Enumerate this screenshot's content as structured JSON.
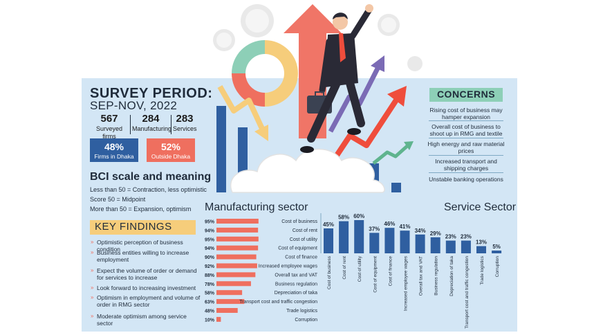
{
  "survey": {
    "title": "SURVEY PERIOD:",
    "dates": "SEP-NOV, 2022",
    "stats": [
      {
        "value": "567",
        "label": "Surveyed firms"
      },
      {
        "value": "284",
        "label": "Manufacturing"
      },
      {
        "value": "283",
        "label": "Services"
      }
    ],
    "dhaka": {
      "value": "48%",
      "label": "Firms in Dhaka",
      "color": "#2f5fa0"
    },
    "outside": {
      "value": "52%",
      "label": "Outside Dhaka",
      "color": "#ef6f5f"
    }
  },
  "bci": {
    "title": "BCI scale and meaning",
    "lines": [
      "Less than 50 = Contraction, less optimistic",
      "Score 50 = Midpoint",
      "More than 50 = Expansion, optimism"
    ]
  },
  "key_findings": {
    "title": "KEY FINDINGS",
    "items": [
      "Optimistic perception of business condition",
      "Business entities willing to increase employment",
      "Expect the volume of order or demand for services to increase",
      "Look forward to increasing investment",
      "Optimism in employment and volume of order in RMG sector",
      "Moderate optimism among service sector"
    ]
  },
  "concerns": {
    "title": "CONCERNS",
    "items": [
      "Rising cost of business may hamper expansion",
      "Overall cost of business to shoot up in RMG and textile",
      "High energy and raw material prices",
      "Increased transport and shipping charges",
      "Unstable banking operations"
    ]
  },
  "colors": {
    "panel": "#d3e6f5",
    "navy": "#2f5fa0",
    "coral": "#ef6f5f",
    "mustard": "#f6cd7b",
    "mint": "#8dcfb7"
  },
  "chart_data": [
    {
      "type": "bar",
      "orientation": "horizontal",
      "title": "Manufacturing sector",
      "categories": [
        "Cost of business",
        "Cost of rent",
        "Cost of utility",
        "Cost of equipment",
        "Cost of finance",
        "Increased employee wages",
        "Overall tax and VAT",
        "Business regulation",
        "Depreciation of taka",
        "Transport cost and traffic congestion",
        "Trade logistics",
        "Corruption"
      ],
      "values": [
        95,
        94,
        95,
        94,
        90,
        92,
        88,
        78,
        58,
        63,
        48,
        10
      ],
      "value_labels": [
        "95%",
        "94%",
        "95%",
        "94%",
        "90%",
        "92%",
        "88%",
        "78%",
        "58%",
        "63%",
        "48%",
        "10%"
      ],
      "unit": "%",
      "color": "#ef6f5f"
    },
    {
      "type": "bar",
      "orientation": "vertical",
      "title": "Service Sector",
      "categories": [
        "Cost of business",
        "Cost of rent",
        "Cost of utility",
        "Cost of equipment",
        "Cost of finance",
        "Increased employee wages",
        "Overall tax and VAT",
        "Business regulation",
        "Depreciation of taka",
        "Transport cost and traffic congestion",
        "Trade logistics",
        "Corruption"
      ],
      "values": [
        45,
        58,
        60,
        37,
        46,
        41,
        34,
        29,
        23,
        23,
        13,
        5
      ],
      "value_labels": [
        "45%",
        "58%",
        "60%",
        "37%",
        "46%",
        "41%",
        "34%",
        "29%",
        "23%",
        "23%",
        "13%",
        "5%"
      ],
      "unit": "%",
      "color": "#2f5fa0"
    }
  ]
}
